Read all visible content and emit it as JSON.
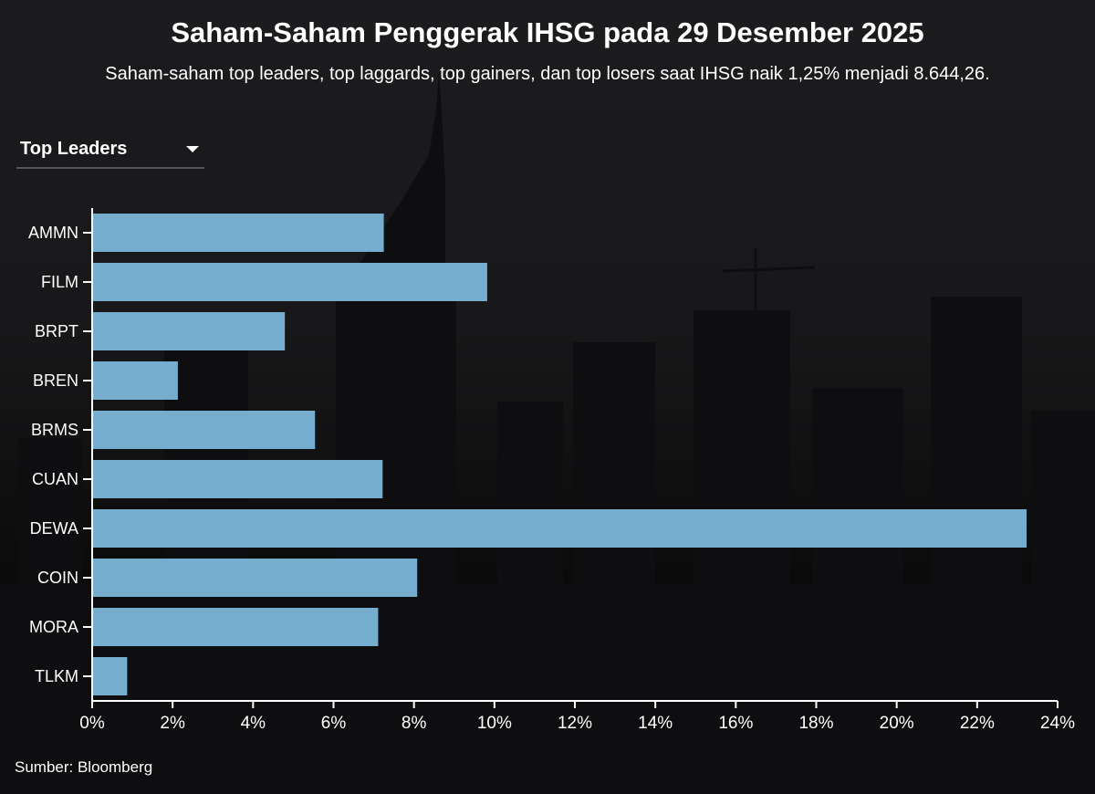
{
  "header": {
    "title": "Saham-Saham Penggerak IHSG pada 29 Desember 2025",
    "subtitle": "Saham-saham top leaders, top laggards, top gainers, dan top losers saat IHSG naik 1,25% menjadi 8.644,26."
  },
  "dropdown": {
    "selected": "Top Leaders",
    "icon": "caret-down-icon"
  },
  "source": "Sumber: Bloomberg",
  "colors": {
    "bar": "#7ab6d9",
    "background": "#111113",
    "text": "#ffffff"
  },
  "chart_data": {
    "type": "bar",
    "orientation": "horizontal",
    "categories": [
      "AMMN",
      "FILM",
      "BRPT",
      "BREN",
      "BRMS",
      "CUAN",
      "DEWA",
      "COIN",
      "MORA",
      "TLKM"
    ],
    "values": [
      7.25,
      9.82,
      4.79,
      2.13,
      5.54,
      7.22,
      23.23,
      8.08,
      7.11,
      0.87
    ],
    "xlim": [
      0,
      24
    ],
    "xticks": [
      "0%",
      "2%",
      "4%",
      "6%",
      "8%",
      "10%",
      "12%",
      "14%",
      "16%",
      "18%",
      "20%",
      "22%",
      "24%"
    ],
    "grid": false
  }
}
